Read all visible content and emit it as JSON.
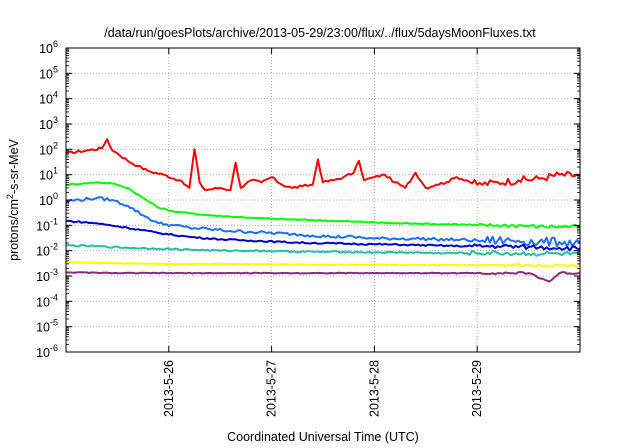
{
  "chart_data": {
    "type": "line",
    "title": "/data/run/goesPlots/archive/2013-05-29/23:00/flux/../flux/5daysMoonFluxes.txt",
    "xlabel": "Coordinated Universal Time (UTC)",
    "ylabel_base": "protons/cm",
    "ylabel_sup": "2",
    "ylabel_rest": "-s-sr-MeV",
    "x_tick_labels": [
      "2013-5-26",
      "2013-5-27",
      "2013-5-28",
      "2013-5-29"
    ],
    "x_ticks_day": [
      1,
      2,
      3,
      4
    ],
    "xlim_day": [
      0,
      5
    ],
    "yscale": "log",
    "ylim": [
      1e-06,
      1000000.0
    ],
    "y_tick_exponents": [
      -6,
      -5,
      -4,
      -3,
      -2,
      -1,
      0,
      1,
      2,
      3,
      4,
      5,
      6
    ],
    "y_tick_base": "10",
    "grid": true,
    "series": [
      {
        "color": "#ff0000",
        "x": [
          0,
          0.2,
          0.35,
          0.4,
          0.45,
          0.5,
          0.6,
          0.7,
          0.8,
          0.95,
          1.1,
          1.2,
          1.25,
          1.3,
          1.35,
          1.5,
          1.6,
          1.65,
          1.7,
          1.8,
          1.9,
          2.0,
          2.1,
          2.2,
          2.3,
          2.4,
          2.45,
          2.5,
          2.6,
          2.7,
          2.8,
          2.85,
          2.9,
          3.0,
          3.1,
          3.2,
          3.3,
          3.4,
          3.5,
          3.6,
          3.7,
          3.8,
          3.9,
          4.0,
          4.2,
          4.4,
          4.6,
          4.8,
          5.0
        ],
        "values": [
          70,
          90,
          110,
          250,
          90,
          70,
          35,
          22,
          14,
          10,
          6,
          3,
          100,
          5,
          2.5,
          3,
          2.5,
          30,
          3,
          6,
          5,
          8,
          4,
          3,
          3.5,
          4,
          40,
          5,
          6,
          8,
          12,
          35,
          6,
          8,
          10,
          5,
          3,
          12,
          3,
          4,
          5,
          8,
          6,
          4,
          5,
          6,
          7,
          10,
          9
        ]
      },
      {
        "color": "#00ff00",
        "x": [
          0,
          0.3,
          0.45,
          0.6,
          0.75,
          0.9,
          1.05,
          1.2,
          1.4,
          1.6,
          1.8,
          2.0,
          2.2,
          2.4,
          2.6,
          2.8,
          3.0,
          3.2,
          3.4,
          3.6,
          3.8,
          4.0,
          4.2,
          4.4,
          4.6,
          4.8,
          5.0
        ],
        "values": [
          4,
          5,
          4.5,
          3,
          1.2,
          0.5,
          0.35,
          0.3,
          0.25,
          0.22,
          0.2,
          0.18,
          0.17,
          0.16,
          0.15,
          0.14,
          0.13,
          0.12,
          0.12,
          0.11,
          0.11,
          0.1,
          0.1,
          0.1,
          0.09,
          0.09,
          0.09
        ]
      },
      {
        "color": "#1e6fff",
        "x": [
          0,
          0.3,
          0.45,
          0.6,
          0.75,
          0.9,
          1.05,
          1.2,
          1.4,
          1.6,
          1.8,
          2.0,
          2.2,
          2.4,
          2.6,
          2.8,
          3.0,
          3.2,
          3.4,
          3.6,
          3.8,
          4.0,
          4.2,
          4.4,
          4.6,
          4.8,
          5.0
        ],
        "values": [
          0.9,
          1.2,
          1.0,
          0.6,
          0.25,
          0.12,
          0.1,
          0.08,
          0.07,
          0.06,
          0.055,
          0.05,
          0.045,
          0.04,
          0.035,
          0.035,
          0.03,
          0.03,
          0.03,
          0.028,
          0.027,
          0.025,
          0.025,
          0.025,
          0.022,
          0.022,
          0.02
        ]
      },
      {
        "color": "#0000cc",
        "x": [
          0,
          0.3,
          0.6,
          0.9,
          1.2,
          1.5,
          1.8,
          2.1,
          2.4,
          2.7,
          3.0,
          3.3,
          3.6,
          3.9,
          4.2,
          4.5,
          4.8,
          5.0
        ],
        "values": [
          0.15,
          0.12,
          0.08,
          0.05,
          0.035,
          0.028,
          0.025,
          0.022,
          0.02,
          0.019,
          0.018,
          0.017,
          0.016,
          0.015,
          0.015,
          0.014,
          0.013,
          0.012
        ]
      },
      {
        "color": "#20c0a0",
        "x": [
          0,
          0.3,
          0.6,
          0.9,
          1.2,
          1.5,
          1.8,
          2.1,
          2.4,
          2.7,
          3.0,
          3.3,
          3.6,
          3.9,
          4.2,
          4.5,
          4.8,
          5.0
        ],
        "values": [
          0.016,
          0.015,
          0.013,
          0.012,
          0.011,
          0.01,
          0.01,
          0.0095,
          0.009,
          0.009,
          0.0085,
          0.0085,
          0.008,
          0.008,
          0.008,
          0.0075,
          0.0075,
          0.007
        ]
      },
      {
        "color": "#ffff00",
        "x": [
          0,
          0.5,
          1.0,
          1.5,
          2.0,
          2.5,
          3.0,
          3.5,
          4.0,
          4.5,
          5.0
        ],
        "values": [
          0.0035,
          0.0032,
          0.003,
          0.003,
          0.0029,
          0.0028,
          0.0028,
          0.0027,
          0.0027,
          0.0027,
          0.0026
        ]
      },
      {
        "color": "#8b2a7a",
        "x": [
          0,
          0.5,
          1.0,
          1.5,
          2.0,
          2.5,
          3.0,
          3.5,
          4.0,
          4.5,
          4.7,
          4.8,
          5.0
        ],
        "values": [
          0.0014,
          0.0013,
          0.0013,
          0.0013,
          0.0013,
          0.0013,
          0.0013,
          0.0013,
          0.0013,
          0.0013,
          0.0006,
          0.0013,
          0.0013
        ]
      }
    ]
  }
}
